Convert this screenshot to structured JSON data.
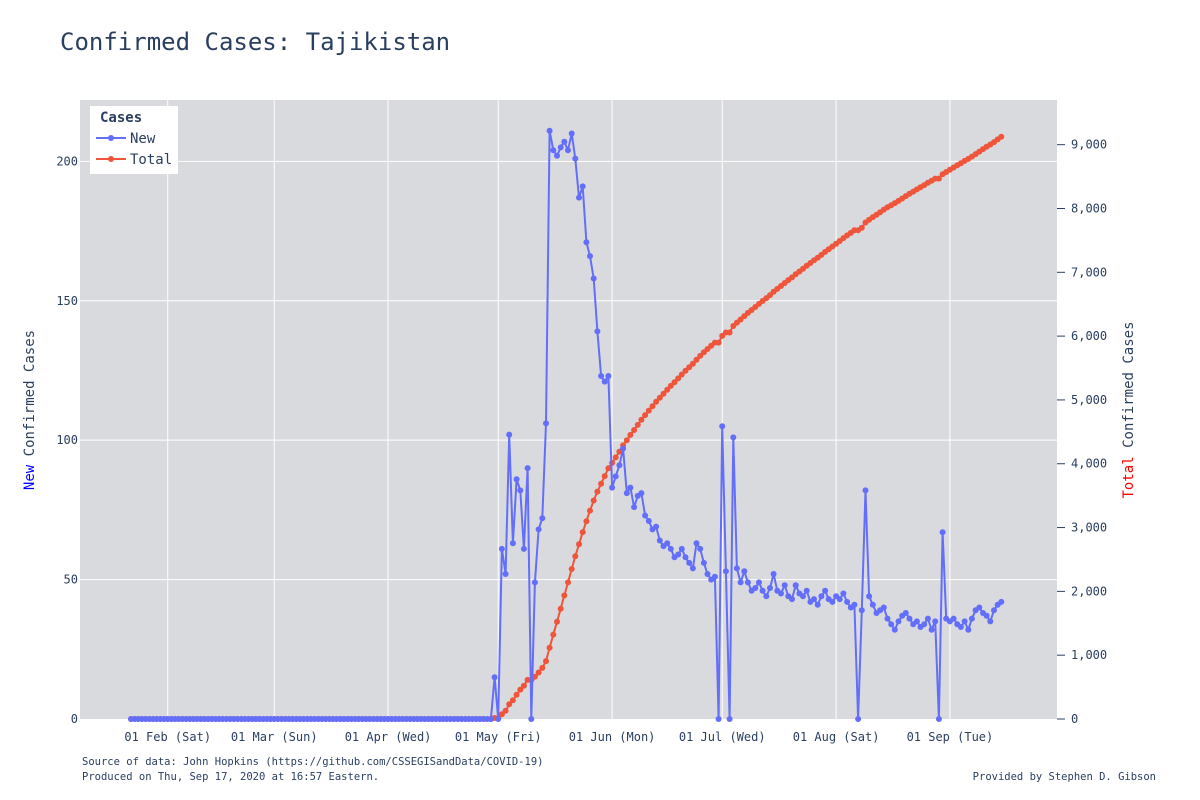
{
  "title": "Confirmed Cases: Tajikistan",
  "legend": {
    "title": "Cases",
    "new_label": "New",
    "total_label": "Total"
  },
  "y_left_label": {
    "prefix": "New",
    "rest": " Confirmed Cases"
  },
  "y_right_label": {
    "prefix": "Total",
    "rest": " Confirmed Cases"
  },
  "footer": {
    "source": "Source of data: John Hopkins (https://github.com/CSSEGISandData/COVID-19)",
    "produced": "Produced on Thu, Sep 17, 2020 at 16:57 Eastern.",
    "credit": "Provided by Stephen D. Gibson"
  },
  "colors": {
    "new": "#636efa",
    "total": "#ef553b",
    "plot_bg": "#d9dadd",
    "grid": "#ffffff",
    "text": "#2a3f5f",
    "new_label": "#0000ff",
    "total_label": "#ff0000"
  },
  "chart_data": {
    "type": "line",
    "x_start": "2020-01-22",
    "x_end": "2020-09-16",
    "x_ticks": [
      {
        "date": "2020-02-01",
        "label": "01 Feb (Sat)"
      },
      {
        "date": "2020-03-01",
        "label": "01 Mar (Sun)"
      },
      {
        "date": "2020-04-01",
        "label": "01 Apr (Wed)"
      },
      {
        "date": "2020-05-01",
        "label": "01 May (Fri)"
      },
      {
        "date": "2020-06-01",
        "label": "01 Jun (Mon)"
      },
      {
        "date": "2020-07-01",
        "label": "01 Jul (Wed)"
      },
      {
        "date": "2020-08-01",
        "label": "01 Aug (Sat)"
      },
      {
        "date": "2020-09-01",
        "label": "01 Sep (Tue)"
      }
    ],
    "y_left": {
      "range": [
        0,
        222
      ],
      "ticks": [
        0,
        50,
        100,
        150,
        200
      ],
      "tick_labels": [
        "0",
        "50",
        "100",
        "150",
        "200"
      ]
    },
    "y_right": {
      "range": [
        0,
        9700
      ],
      "ticks": [
        0,
        1000,
        2000,
        3000,
        4000,
        5000,
        6000,
        7000,
        8000,
        9000
      ],
      "tick_labels": [
        "0",
        "1,000",
        "2,000",
        "3,000",
        "4,000",
        "5,000",
        "6,000",
        "7,000",
        "8,000",
        "9,000"
      ]
    },
    "legend_position": "top-left",
    "grid": true,
    "series": [
      {
        "name": "New",
        "axis": "left",
        "x_start": "2020-04-30",
        "values": [
          15,
          0,
          61,
          52,
          102,
          63,
          86,
          82,
          61,
          90,
          0,
          49,
          68,
          72,
          106,
          211,
          204,
          202,
          205,
          207,
          204,
          210,
          201,
          187,
          191,
          171,
          166,
          158,
          139,
          123,
          121,
          123,
          83,
          87,
          91,
          97,
          81,
          83,
          76,
          80,
          81,
          73,
          71,
          68,
          69,
          64,
          62,
          63,
          61,
          58,
          59,
          61,
          58,
          56,
          54,
          63,
          61,
          56,
          52,
          50,
          51,
          0,
          105,
          53,
          0,
          101,
          54,
          49,
          53,
          49,
          46,
          47,
          49,
          46,
          44,
          47,
          52,
          46,
          45,
          48,
          44,
          43,
          48,
          45,
          44,
          46,
          42,
          43,
          41,
          44,
          46,
          43,
          42,
          44,
          43,
          45,
          42,
          40,
          41,
          0,
          39,
          82,
          44,
          41,
          38,
          39,
          40,
          36,
          34,
          32,
          35,
          37,
          38,
          36,
          34,
          35,
          33,
          34,
          36,
          32,
          35,
          0,
          67,
          36,
          35,
          36,
          34,
          33,
          35,
          32,
          36,
          39,
          40,
          38,
          37,
          35,
          39,
          41,
          42
        ]
      },
      {
        "name": "Total",
        "axis": "right",
        "x_start": "2020-04-30",
        "values": [
          15,
          15,
          76,
          128,
          230,
          293,
          379,
          461,
          522,
          612,
          612,
          661,
          729,
          801,
          907,
          1118,
          1322,
          1524,
          1729,
          1936,
          2140,
          2350,
          2551,
          2738,
          2929,
          3100,
          3266,
          3424,
          3563,
          3686,
          3807,
          3930,
          4013,
          4100,
          4191,
          4288,
          4369,
          4452,
          4528,
          4608,
          4689,
          4762,
          4833,
          4901,
          4970,
          5034,
          5096,
          5159,
          5220,
          5278,
          5337,
          5398,
          5456,
          5512,
          5566,
          5629,
          5690,
          5746,
          5798,
          5848,
          5899,
          5899,
          6004,
          6057,
          6057,
          6158,
          6212,
          6261,
          6314,
          6363,
          6409,
          6456,
          6505,
          6551,
          6595,
          6642,
          6694,
          6740,
          6785,
          6833,
          6877,
          6920,
          6968,
          7013,
          7057,
          7103,
          7145,
          7188,
          7229,
          7273,
          7319,
          7362,
          7404,
          7448,
          7491,
          7536,
          7578,
          7618,
          7659,
          7659,
          7698,
          7780,
          7824,
          7865,
          7903,
          7942,
          7982,
          8018,
          8052,
          8084,
          8119,
          8156,
          8194,
          8230,
          8264,
          8299,
          8332,
          8366,
          8402,
          8434,
          8469,
          8469,
          8536,
          8572,
          8607,
          8643,
          8677,
          8710,
          8745,
          8777,
          8813,
          8852,
          8892,
          8930,
          8967,
          9002,
          9041,
          9082,
          9124
        ]
      }
    ]
  }
}
